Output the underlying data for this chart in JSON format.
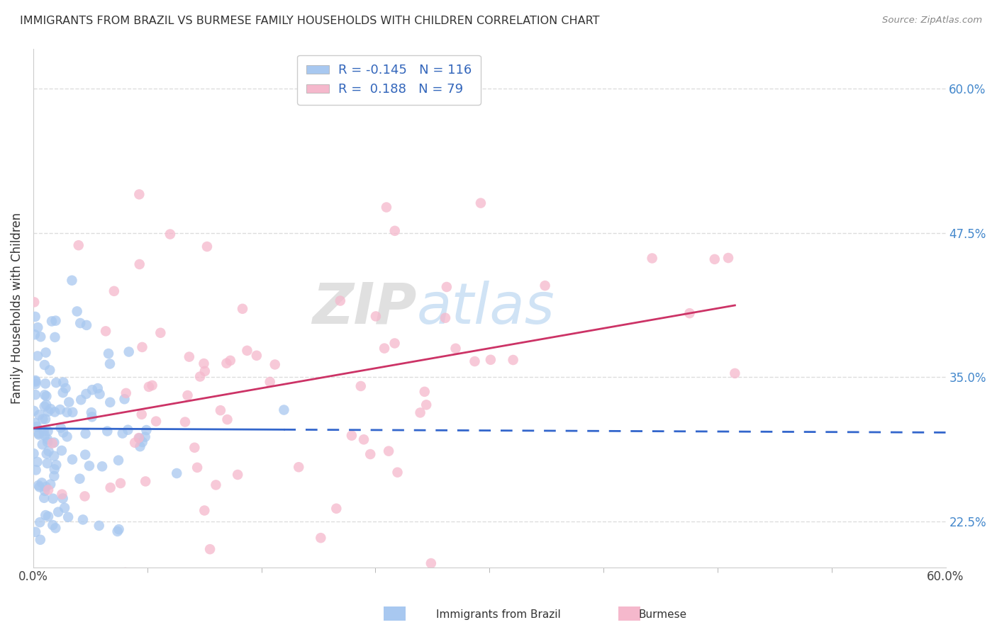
{
  "title": "IMMIGRANTS FROM BRAZIL VS BURMESE FAMILY HOUSEHOLDS WITH CHILDREN CORRELATION CHART",
  "source": "Source: ZipAtlas.com",
  "ylabel": "Family Households with Children",
  "legend_label_1": "Immigrants from Brazil",
  "legend_label_2": "Burmese",
  "R1": -0.145,
  "N1": 116,
  "R2": 0.188,
  "N2": 79,
  "color1": "#A8C8F0",
  "color2": "#F5B8CC",
  "trendline1_color": "#3366CC",
  "trendline2_color": "#CC3366",
  "xlim": [
    0.0,
    0.6
  ],
  "ylim": [
    0.185,
    0.635
  ],
  "ytick_labels": [
    "22.5%",
    "35.0%",
    "47.5%",
    "60.0%"
  ],
  "ytick_values": [
    0.225,
    0.35,
    0.475,
    0.6
  ],
  "xtick_labels": [
    "0.0%",
    "60.0%"
  ],
  "xtick_values": [
    0.0,
    0.6
  ],
  "background_color": "#FFFFFF",
  "grid_color": "#DDDDDD",
  "seed": 77
}
